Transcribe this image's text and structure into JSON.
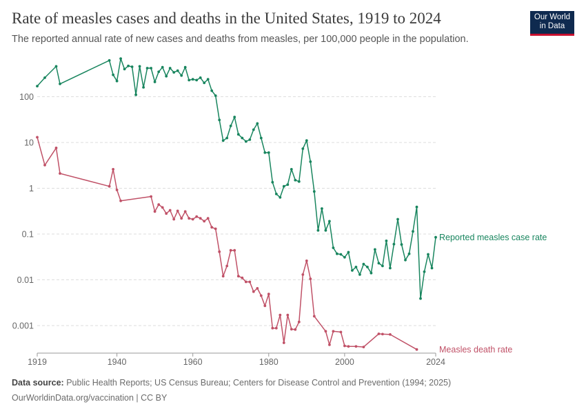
{
  "header": {
    "title": "Rate of measles cases and deaths in the United States, 1919 to 2024",
    "subtitle": "The reported annual rate of new cases and deaths from measles, per 100,000 people in the population."
  },
  "logo": {
    "line1": "Our World",
    "line2": "in Data"
  },
  "footer": {
    "source_label": "Data source:",
    "source_text": "Public Health Reports; US Census Bureau; Centers for Disease Control and Prevention (1994; 2025)",
    "url": "OurWorldinData.org/vaccination | CC BY"
  },
  "chart_data": {
    "type": "line",
    "y_scale": "log",
    "ylim": [
      0.00025,
      900
    ],
    "xlim": [
      1919,
      2024
    ],
    "x_ticks": [
      1919,
      1940,
      1960,
      1980,
      2000,
      2024
    ],
    "y_ticks": [
      {
        "value": 0.001,
        "label": "0.001"
      },
      {
        "value": 0.01,
        "label": "0.01"
      },
      {
        "value": 0.1,
        "label": "0.1"
      },
      {
        "value": 1,
        "label": "1"
      },
      {
        "value": 10,
        "label": "10"
      },
      {
        "value": 100,
        "label": "100"
      }
    ],
    "grid": "horizontal dashed",
    "series": [
      {
        "name": "Reported measles case rate",
        "color": "#18855e",
        "points": [
          [
            1919,
            170
          ],
          [
            1921,
            260
          ],
          [
            1924,
            460
          ],
          [
            1925,
            190
          ],
          [
            1938,
            620
          ],
          [
            1939,
            300
          ],
          [
            1940,
            220
          ],
          [
            1941,
            680
          ],
          [
            1942,
            400
          ],
          [
            1943,
            470
          ],
          [
            1944,
            450
          ],
          [
            1945,
            110
          ],
          [
            1946,
            460
          ],
          [
            1947,
            160
          ],
          [
            1948,
            420
          ],
          [
            1949,
            420
          ],
          [
            1950,
            210
          ],
          [
            1951,
            350
          ],
          [
            1952,
            440
          ],
          [
            1953,
            280
          ],
          [
            1954,
            420
          ],
          [
            1955,
            340
          ],
          [
            1956,
            370
          ],
          [
            1957,
            290
          ],
          [
            1958,
            440
          ],
          [
            1959,
            230
          ],
          [
            1960,
            240
          ],
          [
            1961,
            230
          ],
          [
            1962,
            260
          ],
          [
            1963,
            200
          ],
          [
            1964,
            240
          ],
          [
            1965,
            135
          ],
          [
            1966,
            105
          ],
          [
            1967,
            31
          ],
          [
            1968,
            11
          ],
          [
            1969,
            12.5
          ],
          [
            1970,
            23
          ],
          [
            1971,
            36
          ],
          [
            1972,
            15
          ],
          [
            1973,
            12.5
          ],
          [
            1974,
            10.5
          ],
          [
            1975,
            11.5
          ],
          [
            1976,
            19
          ],
          [
            1977,
            26
          ],
          [
            1978,
            12.5
          ],
          [
            1979,
            6
          ],
          [
            1980,
            6
          ],
          [
            1981,
            1.35
          ],
          [
            1982,
            0.75
          ],
          [
            1983,
            0.63
          ],
          [
            1984,
            1.1
          ],
          [
            1985,
            1.2
          ],
          [
            1986,
            2.6
          ],
          [
            1987,
            1.5
          ],
          [
            1988,
            1.4
          ],
          [
            1989,
            7.3
          ],
          [
            1990,
            11
          ],
          [
            1991,
            3.8
          ],
          [
            1992,
            0.85
          ],
          [
            1993,
            0.12
          ],
          [
            1994,
            0.36
          ],
          [
            1995,
            0.12
          ],
          [
            1996,
            0.19
          ],
          [
            1997,
            0.05
          ],
          [
            1998,
            0.037
          ],
          [
            1999,
            0.036
          ],
          [
            2000,
            0.031
          ],
          [
            2001,
            0.04
          ],
          [
            2002,
            0.016
          ],
          [
            2003,
            0.019
          ],
          [
            2004,
            0.013
          ],
          [
            2005,
            0.022
          ],
          [
            2006,
            0.019
          ],
          [
            2007,
            0.014
          ],
          [
            2008,
            0.046
          ],
          [
            2009,
            0.023
          ],
          [
            2010,
            0.02
          ],
          [
            2011,
            0.071
          ],
          [
            2012,
            0.018
          ],
          [
            2013,
            0.06
          ],
          [
            2014,
            0.21
          ],
          [
            2015,
            0.059
          ],
          [
            2016,
            0.027
          ],
          [
            2017,
            0.037
          ],
          [
            2018,
            0.114
          ],
          [
            2019,
            0.39
          ],
          [
            2020,
            0.0039
          ],
          [
            2021,
            0.015
          ],
          [
            2022,
            0.036
          ],
          [
            2023,
            0.018
          ],
          [
            2024,
            0.085
          ]
        ]
      },
      {
        "name": "Measles death rate",
        "color": "#c05167",
        "points": [
          [
            1919,
            13
          ],
          [
            1921,
            3.2
          ],
          [
            1924,
            7.6
          ],
          [
            1925,
            2.1
          ],
          [
            1938,
            1.1
          ],
          [
            1939,
            2.6
          ],
          [
            1940,
            0.92
          ],
          [
            1941,
            0.53
          ],
          [
            1949,
            0.66
          ],
          [
            1950,
            0.31
          ],
          [
            1951,
            0.44
          ],
          [
            1952,
            0.38
          ],
          [
            1953,
            0.28
          ],
          [
            1954,
            0.33
          ],
          [
            1955,
            0.21
          ],
          [
            1956,
            0.32
          ],
          [
            1957,
            0.22
          ],
          [
            1958,
            0.31
          ],
          [
            1959,
            0.22
          ],
          [
            1960,
            0.21
          ],
          [
            1961,
            0.24
          ],
          [
            1962,
            0.22
          ],
          [
            1963,
            0.19
          ],
          [
            1964,
            0.22
          ],
          [
            1965,
            0.14
          ],
          [
            1966,
            0.13
          ],
          [
            1967,
            0.041
          ],
          [
            1968,
            0.012
          ],
          [
            1969,
            0.02
          ],
          [
            1970,
            0.044
          ],
          [
            1971,
            0.044
          ],
          [
            1972,
            0.012
          ],
          [
            1973,
            0.011
          ],
          [
            1974,
            0.009
          ],
          [
            1975,
            0.009
          ],
          [
            1976,
            0.0055
          ],
          [
            1977,
            0.0065
          ],
          [
            1978,
            0.0045
          ],
          [
            1979,
            0.0027
          ],
          [
            1980,
            0.0049
          ],
          [
            1981,
            0.00088
          ],
          [
            1982,
            0.00088
          ],
          [
            1983,
            0.0017
          ],
          [
            1984,
            0.00042
          ],
          [
            1985,
            0.0017
          ],
          [
            1986,
            0.00083
          ],
          [
            1987,
            0.00082
          ],
          [
            1988,
            0.0012
          ],
          [
            1989,
            0.013
          ],
          [
            1990,
            0.026
          ],
          [
            1991,
            0.0105
          ],
          [
            1992,
            0.0016
          ],
          [
            1995,
            0.00075
          ],
          [
            1996,
            0.00038
          ],
          [
            1997,
            0.00075
          ],
          [
            1999,
            0.00072
          ],
          [
            2000,
            0.00036
          ],
          [
            2001,
            0.00035
          ],
          [
            2003,
            0.00035
          ],
          [
            2005,
            0.00034
          ],
          [
            2009,
            0.00066
          ],
          [
            2010,
            0.00065
          ],
          [
            2012,
            0.00064
          ],
          [
            2019,
            0.0003
          ]
        ]
      }
    ]
  }
}
